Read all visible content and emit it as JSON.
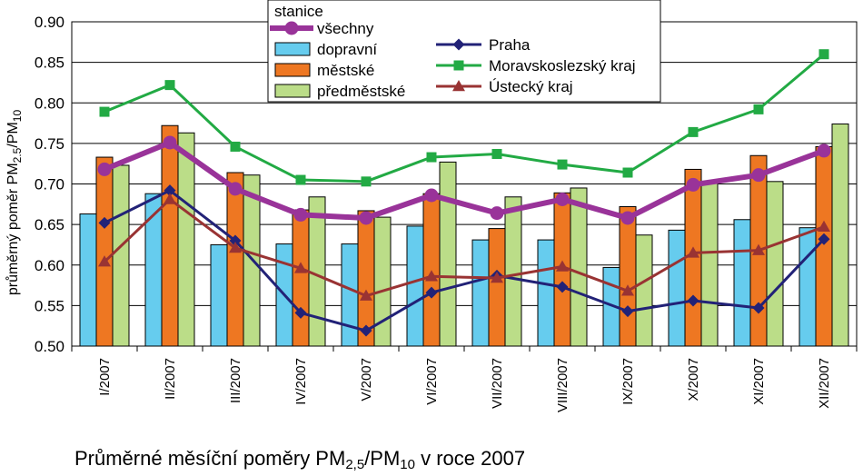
{
  "chart_data": {
    "type": "bar",
    "title": {
      "prefix": "Průměrné měsíční poměry  PM",
      "sub1": "2,5",
      "mid": "/PM",
      "sub2": "10",
      "suffix": " v roce 2007"
    },
    "ylabel": {
      "prefix": "průměrný poměr PM",
      "sub1": "2.5",
      "mid": "/PM",
      "sub2": "10"
    },
    "ylim": [
      0.5,
      0.9
    ],
    "yticks": [
      "0.50",
      "0.55",
      "0.60",
      "0.65",
      "0.70",
      "0.75",
      "0.80",
      "0.85",
      "0.90"
    ],
    "grid": true,
    "legend_title": "stanice",
    "legend_position": "top",
    "categories": [
      "I/2007",
      "II/2007",
      "III/2007",
      "IV/2007",
      "V/2007",
      "VI/2007",
      "VII/2007",
      "VIII/2007",
      "IX/2007",
      "X/2007",
      "XI/2007",
      "XII/2007"
    ],
    "bar_series": [
      {
        "name": "dopravní",
        "color": "#66ccee",
        "values": [
          0.663,
          0.688,
          0.625,
          0.626,
          0.626,
          0.648,
          0.631,
          0.631,
          0.597,
          0.643,
          0.656,
          0.646
        ]
      },
      {
        "name": "městské",
        "color": "#ee7722",
        "values": [
          0.733,
          0.772,
          0.714,
          0.668,
          0.667,
          0.688,
          0.645,
          0.689,
          0.672,
          0.718,
          0.735,
          0.746
        ]
      },
      {
        "name": "předměstské",
        "color": "#bbdd88",
        "values": [
          0.723,
          0.763,
          0.711,
          0.684,
          0.659,
          0.727,
          0.684,
          0.695,
          0.637,
          0.703,
          0.703,
          0.774
        ]
      }
    ],
    "line_series": [
      {
        "name": "všechny",
        "color": "#993399",
        "marker": "circle",
        "values": [
          0.718,
          0.751,
          0.694,
          0.662,
          0.658,
          0.686,
          0.664,
          0.681,
          0.658,
          0.699,
          0.711,
          0.741
        ]
      },
      {
        "name": "Praha",
        "color": "#222277",
        "marker": "diamond",
        "values": [
          0.652,
          0.692,
          0.63,
          0.541,
          0.519,
          0.566,
          0.587,
          0.573,
          0.543,
          0.556,
          0.547,
          0.632
        ]
      },
      {
        "name": "Moravskoslezský kraj",
        "color": "#22aa44",
        "marker": "square",
        "values": [
          0.789,
          0.822,
          0.746,
          0.705,
          0.703,
          0.733,
          0.737,
          0.724,
          0.714,
          0.764,
          0.792,
          0.86
        ]
      },
      {
        "name": "Ústecký kraj",
        "color": "#993333",
        "marker": "triangle",
        "values": [
          0.604,
          0.681,
          0.621,
          0.596,
          0.562,
          0.586,
          0.584,
          0.598,
          0.568,
          0.615,
          0.618,
          0.647
        ]
      }
    ]
  }
}
